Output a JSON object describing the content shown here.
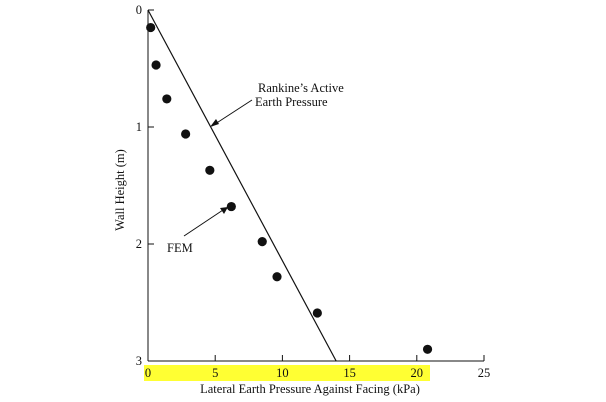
{
  "chart_data": {
    "type": "scatter",
    "title": "",
    "xlabel": "Lateral Earth Pressure Against Facing (kPa)",
    "ylabel": "Wall Height (m)",
    "xlim": [
      0,
      25
    ],
    "ylim": [
      0,
      3
    ],
    "y_inverted": true,
    "x_ticks": [
      0,
      5,
      10,
      15,
      20,
      25
    ],
    "y_ticks": [
      0,
      1,
      2,
      3
    ],
    "highlight_color": "#ffff33",
    "series": [
      {
        "name": "FEM",
        "kind": "points",
        "points": [
          {
            "x": 0.2,
            "y": 0.15
          },
          {
            "x": 0.6,
            "y": 0.47
          },
          {
            "x": 1.4,
            "y": 0.76
          },
          {
            "x": 2.8,
            "y": 1.06
          },
          {
            "x": 4.6,
            "y": 1.37
          },
          {
            "x": 6.2,
            "y": 1.68
          },
          {
            "x": 8.5,
            "y": 1.98
          },
          {
            "x": 9.6,
            "y": 2.28
          },
          {
            "x": 12.6,
            "y": 2.59
          },
          {
            "x": 20.8,
            "y": 2.9
          }
        ]
      },
      {
        "name": "Rankine's Active Earth Pressure",
        "kind": "line",
        "points": [
          {
            "x": 0,
            "y": 0
          },
          {
            "x": 14,
            "y": 3
          }
        ]
      }
    ],
    "annotations": {
      "rankine_line1": "Rankine’s Active",
      "rankine_line2": "Earth Pressure",
      "fem": "FEM"
    }
  }
}
